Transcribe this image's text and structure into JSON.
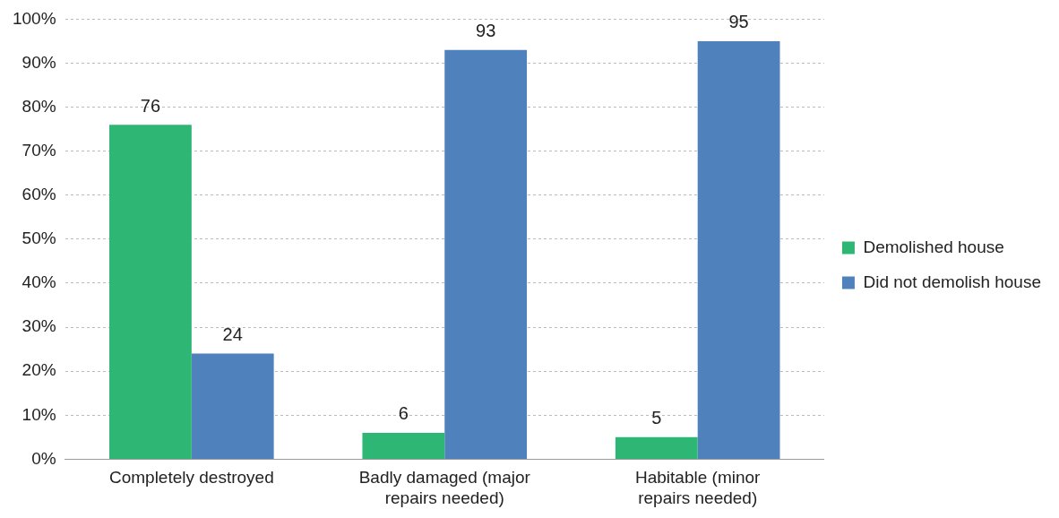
{
  "chart_data": {
    "type": "bar",
    "categories": [
      "Completely destroyed",
      "Badly damaged (major repairs needed)",
      "Habitable (minor repairs needed)"
    ],
    "series": [
      {
        "name": "Demolished house",
        "color": "#2db674",
        "values": [
          76,
          6,
          5
        ]
      },
      {
        "name": "Did not demolish house",
        "color": "#4f81bd",
        "values": [
          24,
          93,
          95
        ]
      }
    ],
    "ylim": [
      0,
      100
    ],
    "yticks": [
      {
        "value": 0,
        "label": "0%"
      },
      {
        "value": 10,
        "label": "10%"
      },
      {
        "value": 20,
        "label": "20%"
      },
      {
        "value": 30,
        "label": "30%"
      },
      {
        "value": 40,
        "label": "40%"
      },
      {
        "value": 50,
        "label": "50%"
      },
      {
        "value": 60,
        "label": "60%"
      },
      {
        "value": 70,
        "label": "70%"
      },
      {
        "value": 80,
        "label": "80%"
      },
      {
        "value": 90,
        "label": "90%"
      },
      {
        "value": 100,
        "label": "100%"
      }
    ],
    "grid": "y",
    "legend": "right",
    "data_labels": true
  }
}
